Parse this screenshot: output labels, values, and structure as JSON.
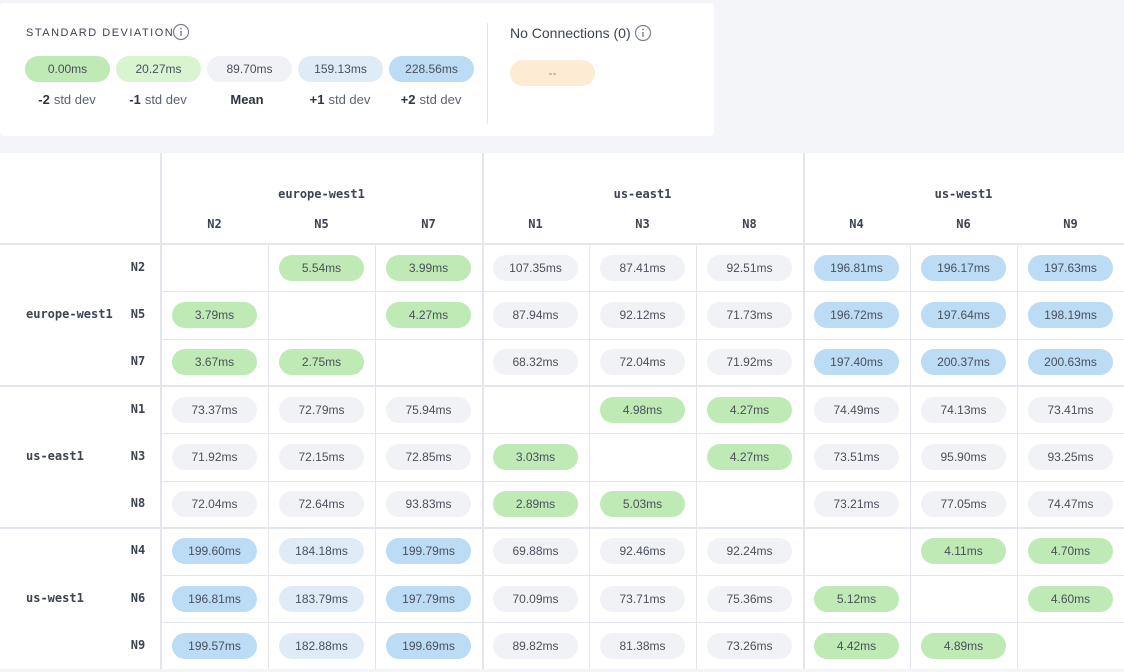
{
  "legend": {
    "title": "STANDARD DEVIATION",
    "items": [
      {
        "value": "0.00ms",
        "color": "#bfeab5",
        "label": {
          "strong": "-2",
          "text": "std dev"
        }
      },
      {
        "value": "20.27ms",
        "color": "#d9f4d1",
        "label": {
          "strong": "-1",
          "text": "std dev"
        }
      },
      {
        "value": "89.70ms",
        "color": "#f1f2f5",
        "label": {
          "strong": "Mean"
        }
      },
      {
        "value": "159.13ms",
        "color": "#dfecf7",
        "label": {
          "strong": "+1",
          "text": "std dev"
        }
      },
      {
        "value": "228.56ms",
        "color": "#bcdbf5",
        "label": {
          "strong": "+2",
          "text": "std dev"
        }
      }
    ]
  },
  "no_connections": {
    "title": "No Connections (0)",
    "value": "--",
    "color": "#fdebd3"
  },
  "matrix": {
    "columns": [
      {
        "region": "europe-west1",
        "nodes": [
          "N2",
          "N5",
          "N7"
        ]
      },
      {
        "region": "us-east1",
        "nodes": [
          "N1",
          "N3",
          "N8"
        ]
      },
      {
        "region": "us-west1",
        "nodes": [
          "N4",
          "N6",
          "N9"
        ]
      }
    ],
    "rows": [
      {
        "region": "europe-west1",
        "nodes": [
          "N2",
          "N5",
          "N7"
        ]
      },
      {
        "region": "us-east1",
        "nodes": [
          "N1",
          "N3",
          "N8"
        ]
      },
      {
        "region": "us-west1",
        "nodes": [
          "N4",
          "N6",
          "N9"
        ]
      }
    ],
    "cells": [
      [
        null,
        "5.54ms",
        "3.99ms",
        "107.35ms",
        "87.41ms",
        "92.51ms",
        "196.81ms",
        "196.17ms",
        "197.63ms"
      ],
      [
        "3.79ms",
        null,
        "4.27ms",
        "87.94ms",
        "92.12ms",
        "71.73ms",
        "196.72ms",
        "197.64ms",
        "198.19ms"
      ],
      [
        "3.67ms",
        "2.75ms",
        null,
        "68.32ms",
        "72.04ms",
        "71.92ms",
        "197.40ms",
        "200.37ms",
        "200.63ms"
      ],
      [
        "73.37ms",
        "72.79ms",
        "75.94ms",
        null,
        "4.98ms",
        "4.27ms",
        "74.49ms",
        "74.13ms",
        "73.41ms"
      ],
      [
        "71.92ms",
        "72.15ms",
        "72.85ms",
        "3.03ms",
        null,
        "4.27ms",
        "73.51ms",
        "95.90ms",
        "93.25ms"
      ],
      [
        "72.04ms",
        "72.64ms",
        "93.83ms",
        "2.89ms",
        "5.03ms",
        null,
        "73.21ms",
        "77.05ms",
        "74.47ms"
      ],
      [
        "199.60ms",
        "184.18ms",
        "199.79ms",
        "69.88ms",
        "92.46ms",
        "92.24ms",
        null,
        "4.11ms",
        "4.70ms"
      ],
      [
        "196.81ms",
        "183.79ms",
        "197.79ms",
        "70.09ms",
        "73.71ms",
        "75.36ms",
        "5.12ms",
        null,
        "4.60ms"
      ],
      [
        "199.57ms",
        "182.88ms",
        "199.69ms",
        "89.82ms",
        "81.38ms",
        "73.26ms",
        "4.42ms",
        "4.89ms",
        null
      ]
    ]
  }
}
